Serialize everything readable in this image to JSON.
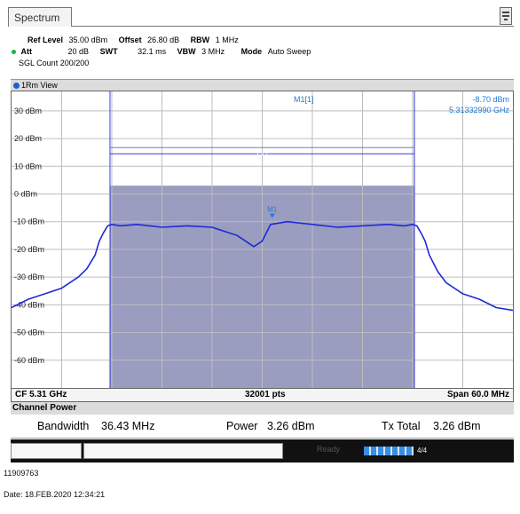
{
  "tab": {
    "title": "Spectrum",
    "icon": "instrument-menu-icon"
  },
  "params": {
    "ref_level_label": "Ref Level",
    "ref_level_value": "35.00 dBm",
    "offset_label": "Offset",
    "offset_value": "26.80 dB",
    "rbw_label": "RBW",
    "rbw_value": "1 MHz",
    "att_label": "Att",
    "att_value": "20 dB",
    "swt_label": "SWT",
    "swt_value": "32.1 ms",
    "vbw_label": "VBW",
    "vbw_value": "3 MHz",
    "mode_label": "Mode",
    "mode_value": "Auto Sweep",
    "sgl_count": "SGL Count 200/200"
  },
  "view": {
    "label": "1Rm View"
  },
  "marker": {
    "label": "M1[1]",
    "level": "-8.70 dBm",
    "freq": "5.31332990 GHz",
    "trace_tag": "M1",
    "channel_tag": "TX1"
  },
  "chart_data": {
    "type": "line",
    "ylabels": [
      "30 dBm",
      "20 dBm",
      "10 dBm",
      "0 dBm",
      "-10 dBm",
      "-20 dBm",
      "-30 dBm",
      "-40 dBm",
      "-50 dBm",
      "-60 dBm"
    ],
    "y_ticks": [
      30,
      20,
      10,
      0,
      -10,
      -20,
      -30,
      -40,
      -50,
      -60
    ],
    "ylim": [
      -70,
      37
    ],
    "xlim": [
      -30,
      30
    ],
    "x_unit": "MHz offset from CF",
    "channel_bandwidth_mhz": 36.43,
    "series": [
      {
        "x": [
          -30,
          -28,
          -26,
          -24,
          -22,
          -21,
          -20,
          -19.5,
          -19,
          -18.5,
          -18,
          -17,
          -15,
          -12,
          -9,
          -6,
          -3,
          -1,
          0,
          1,
          3,
          6,
          9,
          12,
          15,
          17,
          18,
          18.5,
          19,
          19.5,
          20,
          21,
          22,
          24,
          26,
          28,
          30
        ],
        "y": [
          -41,
          -38,
          -36,
          -34,
          -30,
          -27,
          -22,
          -17,
          -14,
          -11.5,
          -11,
          -11.5,
          -11,
          -12,
          -11.5,
          -12,
          -15,
          -19,
          -17,
          -11,
          -10,
          -11,
          -12,
          -11.5,
          -11,
          -11.5,
          -11,
          -11.5,
          -14,
          -17,
          -22,
          -28,
          -32,
          -36,
          -38,
          -41,
          -42
        ]
      }
    ]
  },
  "axis": {
    "cf": "CF 5.31 GHz",
    "pts": "32001 pts",
    "span": "Span 60.0 MHz"
  },
  "channel_power": {
    "title": "Channel Power",
    "bandwidth_label": "Bandwidth",
    "bandwidth_value": "36.43 MHz",
    "power_label": "Power",
    "power_value": "3.26 dBm",
    "tx_total_label": "Tx Total",
    "tx_total_value": "3.26 dBm"
  },
  "status": {
    "ready": "Ready",
    "progress_tag": "4/4"
  },
  "footer": {
    "id": "11909763",
    "date": "Date: 18.FEB.2020 12:34:21"
  }
}
